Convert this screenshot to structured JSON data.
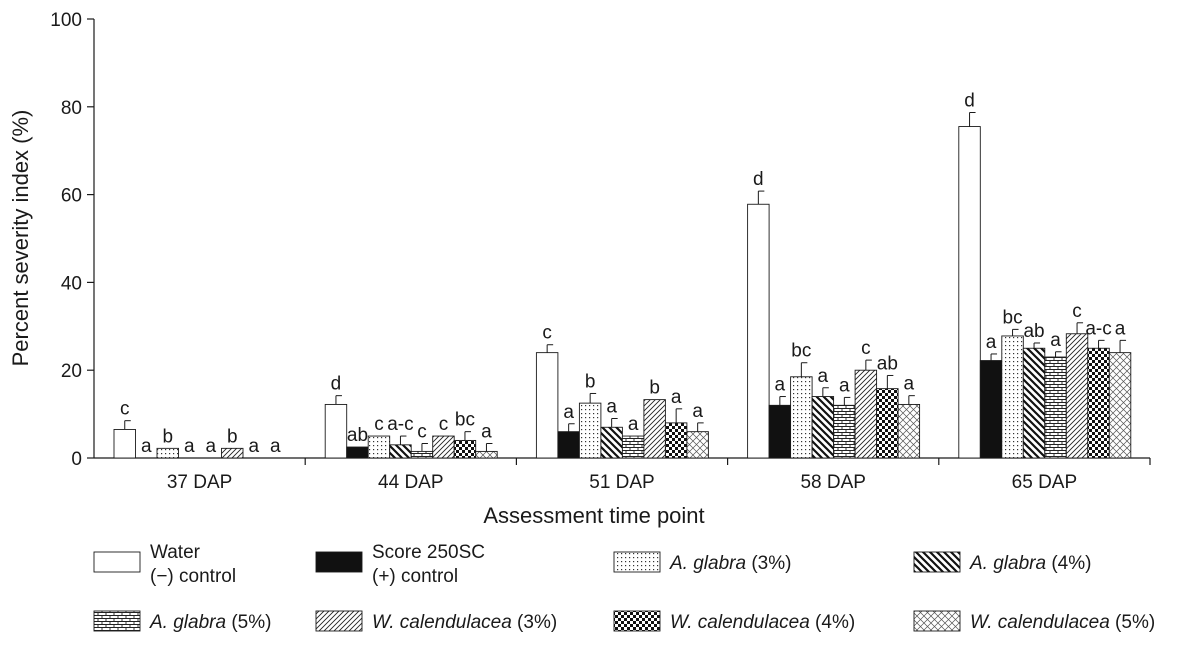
{
  "chart_data": {
    "type": "bar",
    "title": "",
    "xlabel": "Assessment time point",
    "ylabel": "Percent severity index (%)",
    "ylim": [
      0,
      100
    ],
    "yticks": [
      0,
      20,
      40,
      60,
      80,
      100
    ],
    "grid": false,
    "legend_position": "bottom",
    "categories": [
      "37 DAP",
      "44 DAP",
      "51 DAP",
      "58 DAP",
      "65 DAP"
    ],
    "series": [
      {
        "name": [
          "Water",
          "(−) control"
        ],
        "pattern": "empty",
        "values": [
          6.5,
          12.2,
          24.0,
          57.8,
          75.5
        ],
        "errors": [
          2.0,
          2.0,
          1.8,
          3.0,
          3.2
        ],
        "letters": [
          "c",
          "d",
          "c",
          "d",
          "d"
        ]
      },
      {
        "name": [
          "Score 250SC",
          "(+) control"
        ],
        "pattern": "solid",
        "values": [
          0,
          2.5,
          6.0,
          12.0,
          22.2
        ],
        "errors": [
          0,
          0,
          1.8,
          2.0,
          1.5
        ],
        "letters": [
          "a",
          "ab",
          "a",
          "a",
          "a"
        ]
      },
      {
        "name": [
          [
            "A. glabra",
            true
          ],
          [
            " (3%)",
            false
          ]
        ],
        "pattern": "dots",
        "values": [
          2.2,
          5.0,
          12.5,
          18.5,
          27.8
        ],
        "errors": [
          0,
          0,
          2.2,
          3.2,
          1.5
        ],
        "letters": [
          "b",
          "c",
          "b",
          "bc",
          "bc"
        ]
      },
      {
        "name": [
          [
            "A. glabra",
            true
          ],
          [
            " (4%)",
            false
          ]
        ],
        "pattern": "diag-down",
        "values": [
          0,
          3.0,
          7.0,
          14.0,
          25.0
        ],
        "errors": [
          0,
          2.0,
          2.0,
          2.0,
          1.2
        ],
        "letters": [
          "a",
          "a-c",
          "a",
          "a",
          "ab"
        ]
      },
      {
        "name": [
          [
            "A. glabra",
            true
          ],
          [
            " (5%)",
            false
          ]
        ],
        "pattern": "brick",
        "values": [
          0,
          1.5,
          5.0,
          12.0,
          23.0
        ],
        "errors": [
          0,
          1.8,
          0,
          1.8,
          1.2
        ],
        "letters": [
          "a",
          "c",
          "a",
          "a",
          "a"
        ]
      },
      {
        "name": [
          [
            "W. calendulacea",
            true
          ],
          [
            " (3%)",
            false
          ]
        ],
        "pattern": "diag-up",
        "values": [
          2.2,
          5.0,
          13.3,
          20.0,
          28.3
        ],
        "errors": [
          0,
          0,
          0,
          2.3,
          2.5
        ],
        "letters": [
          "b",
          "c",
          "b",
          "c",
          "c"
        ]
      },
      {
        "name": [
          [
            "W. calendulacea",
            true
          ],
          [
            " (4%)",
            false
          ]
        ],
        "pattern": "checker",
        "values": [
          0,
          4.0,
          8.0,
          15.8,
          25.0
        ],
        "errors": [
          0,
          2.0,
          3.2,
          3.0,
          1.8
        ],
        "letters": [
          "a",
          "bc",
          "a",
          "ab",
          "a-c"
        ]
      },
      {
        "name": [
          [
            "W. calendulacea",
            true
          ],
          [
            " (5%)",
            false
          ]
        ],
        "pattern": "diamond",
        "values": [
          0,
          1.5,
          6.0,
          12.2,
          24.0
        ],
        "errors": [
          0,
          1.8,
          2.0,
          2.0,
          2.8
        ],
        "letters": [
          "a",
          "a",
          "a",
          "a",
          "a"
        ]
      }
    ]
  },
  "colors": {
    "ink": "#1a1a1a",
    "background": "#ffffff"
  }
}
